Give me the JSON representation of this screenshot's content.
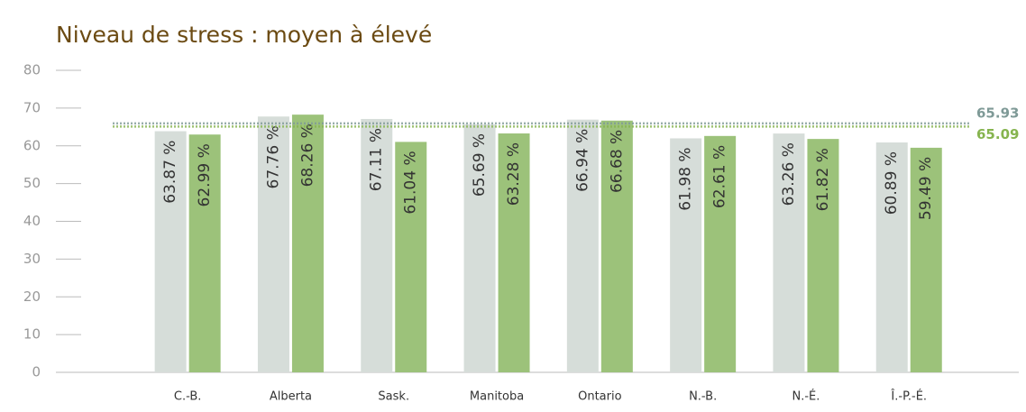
{
  "chart_data": {
    "type": "bar",
    "title": "Niveau de stress : moyen à élevé",
    "categories": [
      "C.-B.",
      "Alberta",
      "Sask.",
      "Manitoba",
      "Ontario",
      "N.-B.",
      "N.-É.",
      "Î.-P.-É."
    ],
    "series": [
      {
        "color": "#d6ddd9",
        "values": [
          63.87,
          67.76,
          67.11,
          65.69,
          66.94,
          61.98,
          63.26,
          60.89
        ],
        "value_labels": [
          "63.87 %",
          "67.76 %",
          "67.11 %",
          "65.69 %",
          "66.94 %",
          "61.98 %",
          "63.26 %",
          "60.89 %"
        ]
      },
      {
        "color": "#9cc27a",
        "values": [
          62.99,
          68.26,
          61.04,
          63.28,
          66.68,
          62.61,
          61.82,
          59.49
        ],
        "value_labels": [
          "62.99 %",
          "68.26 %",
          "61.04 %",
          "63.28 %",
          "66.68 %",
          "62.61 %",
          "61.82 %",
          "59.49 %"
        ]
      }
    ],
    "reference_lines": [
      {
        "value": 65.93,
        "color": "#7f9a97"
      },
      {
        "value": 65.09,
        "color": "#86b44f"
      }
    ],
    "ylim": [
      0,
      80
    ],
    "yticks": [
      0,
      10,
      20,
      30,
      40,
      50,
      60,
      70,
      80
    ]
  }
}
